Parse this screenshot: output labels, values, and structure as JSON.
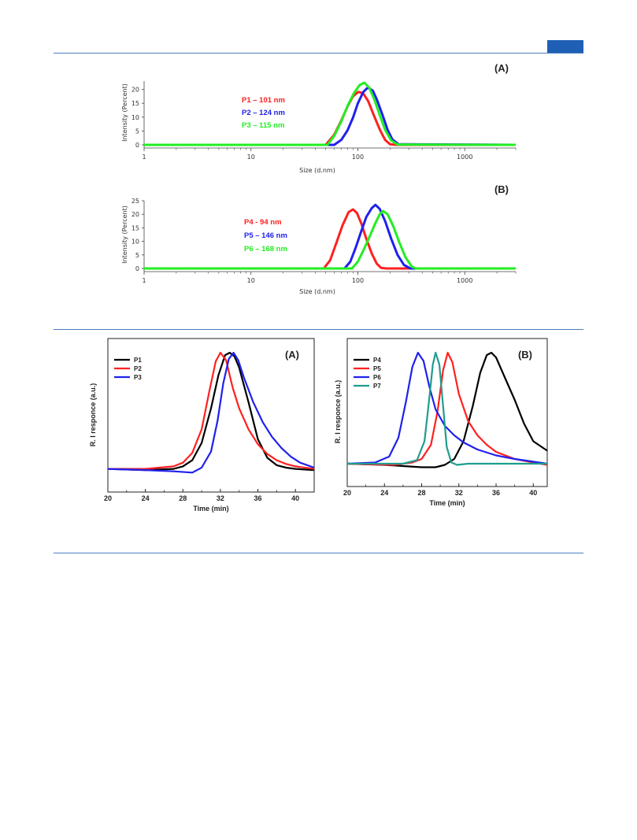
{
  "colors": {
    "rule": "#4a7fc1",
    "header_tab": "#1f5fb5",
    "red": "#ff2020",
    "blue": "#2020ee",
    "green": "#22ee22",
    "black": "#000000",
    "teal": "#1f9d8f"
  },
  "chart_data": [
    {
      "id": "dls_a",
      "type": "line",
      "panel_label": "(A)",
      "xlabel": "Size (d.nm)",
      "ylabel": "Intensity (Percent)",
      "x_scale": "log",
      "xlim": [
        1,
        3000
      ],
      "ylim": [
        0,
        23
      ],
      "x_ticks": [
        1,
        10,
        100,
        1000
      ],
      "x_tick_labels": [
        "1",
        "10",
        "100",
        "1000"
      ],
      "y_ticks": [
        0,
        5,
        10,
        15,
        20
      ],
      "y_tick_labels": [
        "0",
        "5",
        "10",
        "15",
        "20"
      ],
      "annotations": [
        {
          "text": "P1 – 101 nm",
          "color": "#ff2020"
        },
        {
          "text": "P2 – 124 nm",
          "color": "#2020ee"
        },
        {
          "text": "P3 – 115 nm",
          "color": "#22ee22"
        }
      ],
      "series": [
        {
          "color": "#ff2020",
          "x": [
            1,
            50,
            60,
            70,
            80,
            90,
            101,
            112,
            125,
            140,
            160,
            180,
            200,
            230,
            3000
          ],
          "y": [
            0,
            0,
            3.6,
            8.8,
            13.8,
            17.5,
            19.1,
            18.6,
            15.8,
            11.0,
            5.6,
            1.8,
            0.2,
            0,
            0
          ]
        },
        {
          "color": "#2020ee",
          "x": [
            1,
            60,
            70,
            80,
            90,
            100,
            112,
            124,
            138,
            150,
            170,
            190,
            210,
            240,
            3000
          ],
          "y": [
            0,
            0,
            1.8,
            5.2,
            9.8,
            15.0,
            19.0,
            20.7,
            19.5,
            16.5,
            10.8,
            5.4,
            2.0,
            0.2,
            0
          ]
        },
        {
          "color": "#22ee22",
          "x": [
            1,
            52,
            60,
            70,
            80,
            92,
            104,
            115,
            128,
            142,
            160,
            180,
            205,
            235,
            3000
          ],
          "y": [
            0,
            0,
            3.2,
            8.5,
            14.0,
            18.7,
            21.6,
            22.4,
            20.6,
            16.5,
            10.8,
            5.4,
            1.6,
            0.1,
            0
          ]
        }
      ]
    },
    {
      "id": "dls_b",
      "type": "line",
      "panel_label": "(B)",
      "xlabel": "Size (d.nm)",
      "ylabel": "Intensity (Percent)",
      "x_scale": "log",
      "xlim": [
        1,
        3000
      ],
      "ylim": [
        0,
        25
      ],
      "x_ticks": [
        1,
        10,
        100,
        1000
      ],
      "x_tick_labels": [
        "1",
        "10",
        "100",
        "1000"
      ],
      "y_ticks": [
        0,
        5,
        10,
        15,
        20,
        25
      ],
      "y_tick_labels": [
        "0",
        "5",
        "10",
        "15",
        "20",
        "25"
      ],
      "annotations": [
        {
          "text": "P4 - 94 nm",
          "color": "#ff2020"
        },
        {
          "text": "P5 – 146 nm",
          "color": "#2020ee"
        },
        {
          "text": "P6 – 168 nm",
          "color": "#22ee22"
        }
      ],
      "series": [
        {
          "color": "#ff2020",
          "x": [
            1,
            48,
            55,
            63,
            72,
            82,
            90,
            98,
            108,
            120,
            135,
            150,
            165,
            185,
            3000
          ],
          "y": [
            0,
            0,
            3.0,
            9.5,
            16.0,
            20.8,
            21.8,
            20.5,
            16.5,
            11.0,
            5.5,
            1.8,
            0.2,
            0,
            0
          ]
        },
        {
          "color": "#2020ee",
          "x": [
            1,
            75,
            85,
            95,
            107,
            120,
            135,
            146,
            160,
            180,
            205,
            235,
            270,
            310,
            3000
          ],
          "y": [
            0,
            0,
            2.5,
            7.5,
            13.5,
            19.0,
            22.3,
            23.5,
            22.0,
            17.5,
            11.0,
            5.0,
            1.3,
            0,
            0
          ]
        },
        {
          "color": "#22ee22",
          "x": [
            1,
            88,
            100,
            113,
            128,
            145,
            160,
            172,
            190,
            215,
            245,
            280,
            320,
            350,
            3000
          ],
          "y": [
            0,
            0,
            2.5,
            6.8,
            11.5,
            16.5,
            20.0,
            21.2,
            20.0,
            15.5,
            9.5,
            4.0,
            0.6,
            0,
            0
          ]
        }
      ]
    },
    {
      "id": "gpc_a",
      "type": "line",
      "panel_label": "(A)",
      "xlabel": "Time (min)",
      "ylabel": "R. I responce (a.u.)",
      "xlim": [
        20,
        42
      ],
      "ylim": [
        0,
        1
      ],
      "x_ticks": [
        20,
        24,
        28,
        32,
        36,
        40
      ],
      "x_tick_labels": [
        "20",
        "24",
        "28",
        "32",
        "36",
        "40"
      ],
      "legend": [
        "P1",
        "P2",
        "P3"
      ],
      "legend_position": "top-left",
      "series": [
        {
          "name": "P1",
          "color": "#000000",
          "x": [
            20,
            24,
            27,
            28,
            29,
            30,
            31,
            31.8,
            32.5,
            33,
            33.5,
            34,
            35,
            36,
            37,
            38,
            39,
            40,
            42
          ],
          "y": [
            0.06,
            0.05,
            0.06,
            0.08,
            0.13,
            0.27,
            0.55,
            0.82,
            0.98,
            1.0,
            0.97,
            0.88,
            0.6,
            0.3,
            0.15,
            0.09,
            0.07,
            0.06,
            0.05
          ]
        },
        {
          "name": "P2",
          "color": "#ff2020",
          "x": [
            20,
            24,
            27,
            28,
            29,
            30,
            30.8,
            31.5,
            32,
            32.6,
            33.3,
            34,
            35,
            36,
            37,
            38,
            39,
            40,
            42
          ],
          "y": [
            0.06,
            0.06,
            0.08,
            0.11,
            0.19,
            0.38,
            0.68,
            0.93,
            1.0,
            0.94,
            0.72,
            0.55,
            0.38,
            0.26,
            0.18,
            0.13,
            0.1,
            0.08,
            0.06
          ]
        },
        {
          "name": "P3",
          "color": "#2020ee",
          "x": [
            20,
            24,
            27,
            29,
            30,
            31,
            31.7,
            32.3,
            32.9,
            33.4,
            33.9,
            34.5,
            35.5,
            36.5,
            37.5,
            38.5,
            39.5,
            40.5,
            42
          ],
          "y": [
            0.06,
            0.05,
            0.04,
            0.03,
            0.07,
            0.2,
            0.45,
            0.75,
            0.95,
            1.0,
            0.94,
            0.8,
            0.6,
            0.44,
            0.32,
            0.23,
            0.16,
            0.11,
            0.07
          ]
        }
      ]
    },
    {
      "id": "gpc_b",
      "type": "line",
      "panel_label": "(B)",
      "xlabel": "Time (min)",
      "ylabel": "R. I responce (a.u.)",
      "xlim": [
        20,
        41.5
      ],
      "ylim": [
        0,
        1
      ],
      "x_ticks": [
        20,
        24,
        28,
        32,
        36,
        40
      ],
      "x_tick_labels": [
        "20",
        "24",
        "28",
        "32",
        "36",
        "40"
      ],
      "legend": [
        "P4",
        "P5",
        "P6",
        "P7"
      ],
      "legend_position": "top-left",
      "series": [
        {
          "name": "P4",
          "color": "#000000",
          "x": [
            20,
            24,
            28,
            29.5,
            30.5,
            31.5,
            32.5,
            33.5,
            34.3,
            35,
            35.5,
            36,
            37,
            38,
            39,
            40,
            41.5
          ],
          "y": [
            0.06,
            0.05,
            0.03,
            0.03,
            0.05,
            0.1,
            0.25,
            0.55,
            0.83,
            0.98,
            1.0,
            0.96,
            0.78,
            0.6,
            0.4,
            0.25,
            0.17
          ]
        },
        {
          "name": "P5",
          "color": "#ff2020",
          "x": [
            20,
            25,
            27,
            28,
            29,
            29.7,
            30.3,
            30.8,
            31.3,
            32,
            33,
            34,
            35,
            36,
            38,
            40,
            41.5
          ],
          "y": [
            0.06,
            0.05,
            0.07,
            0.1,
            0.22,
            0.5,
            0.85,
            1.0,
            0.92,
            0.65,
            0.42,
            0.3,
            0.22,
            0.16,
            0.1,
            0.07,
            0.05
          ]
        },
        {
          "name": "P6",
          "color": "#2020ee",
          "x": [
            20,
            23,
            24.5,
            25.5,
            26.3,
            27,
            27.6,
            28.2,
            28.8,
            29.5,
            30.5,
            31.5,
            32.5,
            34,
            36,
            38,
            41.5
          ],
          "y": [
            0.06,
            0.07,
            0.12,
            0.28,
            0.58,
            0.88,
            1.0,
            0.93,
            0.72,
            0.52,
            0.38,
            0.3,
            0.24,
            0.18,
            0.13,
            0.1,
            0.06
          ]
        },
        {
          "name": "P7",
          "color": "#1f9d8f",
          "x": [
            20,
            26,
            27.5,
            28.3,
            28.8,
            29.2,
            29.5,
            29.9,
            30.3,
            30.7,
            31.2,
            31.8,
            33,
            36,
            41.5
          ],
          "y": [
            0.06,
            0.06,
            0.09,
            0.25,
            0.6,
            0.9,
            1.0,
            0.9,
            0.55,
            0.2,
            0.07,
            0.05,
            0.06,
            0.06,
            0.06
          ]
        }
      ]
    }
  ]
}
